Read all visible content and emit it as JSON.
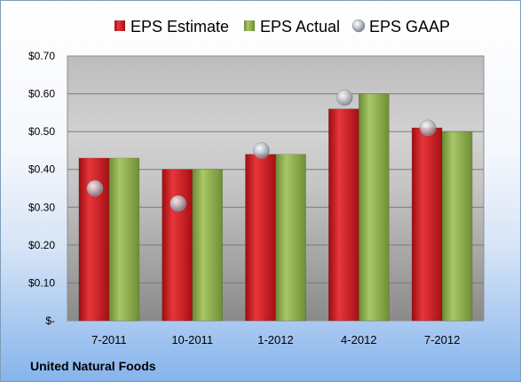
{
  "chart_data": {
    "type": "bar",
    "categories": [
      "7-2011",
      "10-2011",
      "1-2012",
      "4-2012",
      "7-2012"
    ],
    "series": [
      {
        "name": "EPS Estimate",
        "kind": "bar",
        "color": "#d0151c",
        "values": [
          0.43,
          0.4,
          0.44,
          0.56,
          0.51
        ]
      },
      {
        "name": "EPS Actual",
        "kind": "bar",
        "color": "#8fb04c",
        "values": [
          0.43,
          0.4,
          0.44,
          0.6,
          0.5
        ]
      },
      {
        "name": "EPS GAAP",
        "kind": "marker",
        "color": "#b0b6bd",
        "values": [
          0.35,
          0.31,
          0.45,
          0.59,
          0.51
        ]
      }
    ],
    "ylim": [
      0,
      0.7
    ],
    "yticks": [
      0,
      0.1,
      0.2,
      0.3,
      0.4,
      0.5,
      0.6,
      0.7
    ],
    "ytick_labels": [
      "$-",
      "$0.10",
      "$0.20",
      "$0.30",
      "$0.40",
      "$0.50",
      "$0.60",
      "$0.70"
    ],
    "grid": true,
    "legend_position": "top"
  },
  "company_name": "United Natural Foods"
}
